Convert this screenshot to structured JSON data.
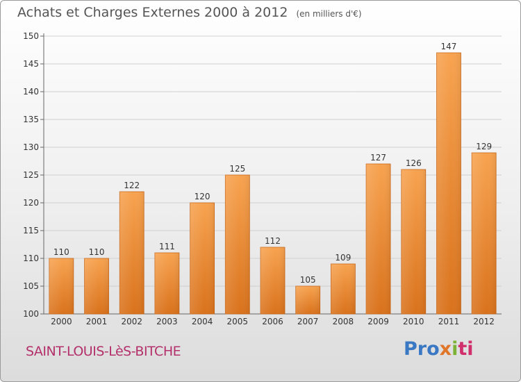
{
  "chart_data": {
    "type": "bar",
    "title": "Achats et Charges Externes 2000 à 2012",
    "subtitle": "(en milliers d'€)",
    "categories": [
      "2000",
      "2001",
      "2002",
      "2003",
      "2004",
      "2005",
      "2006",
      "2007",
      "2008",
      "2009",
      "2010",
      "2011",
      "2012"
    ],
    "values": [
      110,
      110,
      122,
      111,
      120,
      125,
      112,
      105,
      109,
      127,
      126,
      147,
      129
    ],
    "ylim": [
      100,
      150
    ],
    "yticks": [
      100,
      105,
      110,
      115,
      120,
      125,
      130,
      135,
      140,
      145,
      150
    ],
    "grid": true,
    "bar_color": "#f0923b"
  },
  "footer": {
    "commune": "SAINT-LOUIS-LèS-BITCHE",
    "logo": [
      "Pro",
      "x",
      "i",
      "ti"
    ]
  }
}
